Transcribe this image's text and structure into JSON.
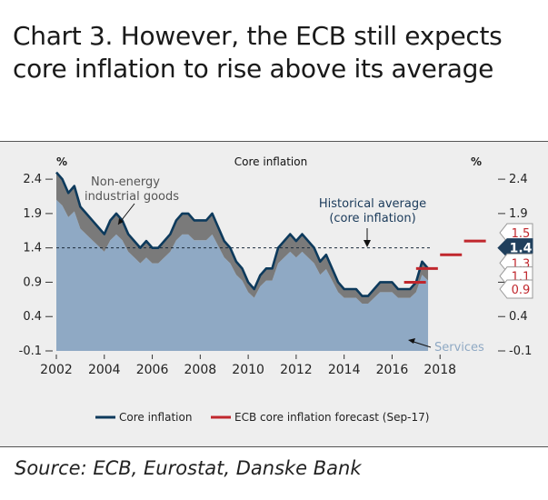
{
  "title": "Chart 3. However, the ECB still expects core inflation to rise above its average",
  "source": "Source: ECB, Eurostat, Danske Bank",
  "colors": {
    "background": "#eeeeee",
    "services_fill": "#8fa9c4",
    "goods_fill": "#7a7a7a",
    "core_line": "#0d3a5c",
    "forecast": "#c0272d",
    "average_line": "#1a2a3a"
  },
  "chart_data": {
    "type": "line",
    "title": "Core inflation",
    "left_unit": "%",
    "right_unit": "%",
    "xlim": [
      2002,
      2020
    ],
    "ylim": [
      -0.1,
      2.6
    ],
    "x_ticks": [
      "2002",
      "2004",
      "2006",
      "2008",
      "2010",
      "2012",
      "2014",
      "2016",
      "2018"
    ],
    "y_ticks": [
      "2.4",
      "1.9",
      "1.4",
      "0.9",
      "0.4",
      "-0.1"
    ],
    "historical_average": 1.4,
    "annotations": {
      "goods": "Non-energy industrial goods",
      "average": "Historical average (core inflation)",
      "services": "Services"
    },
    "series": [
      {
        "name": "Core inflation",
        "x": [
          2002.0,
          2002.25,
          2002.5,
          2002.75,
          2003.0,
          2003.25,
          2003.5,
          2003.75,
          2004.0,
          2004.25,
          2004.5,
          2004.75,
          2005.0,
          2005.25,
          2005.5,
          2005.75,
          2006.0,
          2006.25,
          2006.5,
          2006.75,
          2007.0,
          2007.25,
          2007.5,
          2007.75,
          2008.0,
          2008.25,
          2008.5,
          2008.75,
          2009.0,
          2009.25,
          2009.5,
          2009.75,
          2010.0,
          2010.25,
          2010.5,
          2010.75,
          2011.0,
          2011.25,
          2011.5,
          2011.75,
          2012.0,
          2012.25,
          2012.5,
          2012.75,
          2013.0,
          2013.25,
          2013.5,
          2013.75,
          2014.0,
          2014.25,
          2014.5,
          2014.75,
          2015.0,
          2015.25,
          2015.5,
          2015.75,
          2016.0,
          2016.25,
          2016.5,
          2016.75,
          2017.0,
          2017.25,
          2017.5
        ],
        "values": [
          2.5,
          2.4,
          2.2,
          2.3,
          2.0,
          1.9,
          1.8,
          1.7,
          1.6,
          1.8,
          1.9,
          1.8,
          1.6,
          1.5,
          1.4,
          1.5,
          1.4,
          1.4,
          1.5,
          1.6,
          1.8,
          1.9,
          1.9,
          1.8,
          1.8,
          1.8,
          1.9,
          1.7,
          1.5,
          1.4,
          1.2,
          1.1,
          0.9,
          0.8,
          1.0,
          1.1,
          1.1,
          1.4,
          1.5,
          1.6,
          1.5,
          1.6,
          1.5,
          1.4,
          1.2,
          1.3,
          1.1,
          0.9,
          0.8,
          0.8,
          0.8,
          0.7,
          0.7,
          0.8,
          0.9,
          0.9,
          0.9,
          0.8,
          0.8,
          0.8,
          0.9,
          1.2,
          1.1
        ]
      },
      {
        "name": "ECB core inflation forecast (Sep-17)",
        "x": [
          2016.5,
          2017.0,
          2018.0,
          2019.0
        ],
        "values": [
          0.9,
          1.1,
          1.3,
          1.5
        ]
      }
    ],
    "right_labels": [
      {
        "value": "1.5",
        "highlight": false
      },
      {
        "value": "1.4",
        "highlight": true
      },
      {
        "value": "1.3",
        "highlight": false
      },
      {
        "value": "1.1",
        "highlight": false
      },
      {
        "value": "0.9",
        "highlight": false
      }
    ],
    "legend": {
      "placement": "bottom",
      "items": [
        "Core inflation",
        "ECB core inflation forecast (Sep-17)"
      ]
    }
  }
}
